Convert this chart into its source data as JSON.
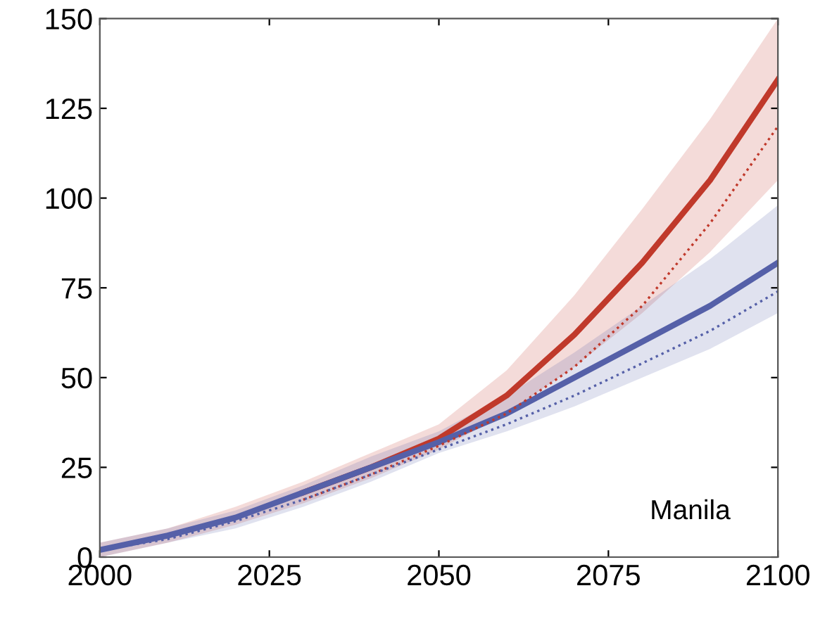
{
  "chart_data": {
    "type": "line",
    "xlim": [
      2000,
      2100
    ],
    "xticks": [
      2000,
      2025,
      2050,
      2075,
      2100
    ],
    "ylim": [
      0,
      150
    ],
    "yticks": [
      0,
      25,
      50,
      75,
      100,
      125,
      150
    ],
    "grid": false,
    "annotations": [
      "Manila"
    ],
    "x": [
      2000,
      2010,
      2020,
      2030,
      2040,
      2050,
      2060,
      2070,
      2080,
      2090,
      2100
    ],
    "series": [
      {
        "color": "#c0392b",
        "line_style": "solid",
        "values": [
          null,
          null,
          null,
          18,
          25,
          33,
          45,
          62,
          82,
          105,
          133
        ],
        "lower": [
          0,
          4,
          9,
          15,
          22,
          30,
          40,
          53,
          68,
          85,
          105
        ],
        "upper": [
          4,
          8,
          14,
          21,
          29,
          37,
          52,
          73,
          97,
          122,
          150
        ]
      },
      {
        "color": "#5560a8",
        "line_style": "solid",
        "values": [
          2,
          6,
          11,
          18,
          25,
          32,
          40,
          50,
          60,
          70,
          82
        ],
        "lower": [
          0,
          4,
          8,
          14,
          21,
          29,
          35,
          42,
          50,
          58,
          68
        ],
        "upper": [
          4,
          8,
          13,
          20,
          28,
          35,
          45,
          57,
          70,
          83,
          98
        ]
      },
      {
        "color": "#c0392b",
        "line_style": "dotted",
        "values": [
          null,
          null,
          null,
          16,
          23,
          31,
          40,
          53,
          70,
          93,
          120
        ]
      },
      {
        "color": "#5560a8",
        "line_style": "dotted",
        "values": [
          2,
          5,
          10,
          16,
          23,
          30,
          37,
          45,
          54,
          63,
          74
        ]
      }
    ]
  }
}
